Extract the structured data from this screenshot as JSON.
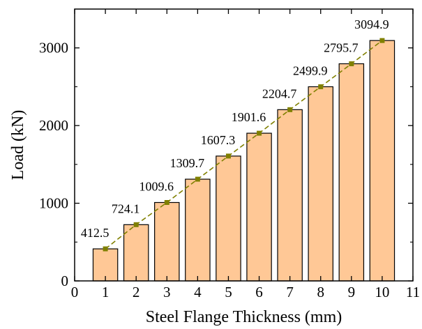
{
  "chart_data": {
    "type": "bar",
    "x": [
      1,
      2,
      3,
      4,
      5,
      6,
      7,
      8,
      9,
      10
    ],
    "values": [
      412.5,
      724.1,
      1009.6,
      1309.7,
      1607.3,
      1901.6,
      2204.7,
      2499.9,
      2795.7,
      3094.9
    ],
    "value_labels": [
      "412.5",
      "724.1",
      "1009.6",
      "1309.7",
      "1607.3",
      "1901.6",
      "2204.7",
      "2499.9",
      "2795.7",
      "3094.9"
    ],
    "title": "",
    "xlabel": "Steel Flange Thickness (mm)",
    "ylabel": "Load (kN)",
    "xlim": [
      0,
      11
    ],
    "ylim": [
      0,
      3500
    ],
    "xticks": [
      "0",
      "1",
      "2",
      "3",
      "4",
      "5",
      "6",
      "7",
      "8",
      "9",
      "10",
      "11"
    ],
    "yticks": [
      "0",
      "1000",
      "2000",
      "3000"
    ],
    "grid": false,
    "overlay": {
      "type": "line",
      "style": "dashed",
      "marker": "square"
    },
    "colors": {
      "bar_fill": "#FFC896",
      "bar_edge": "#000000",
      "line": "#808000",
      "marker": "#808000"
    }
  }
}
